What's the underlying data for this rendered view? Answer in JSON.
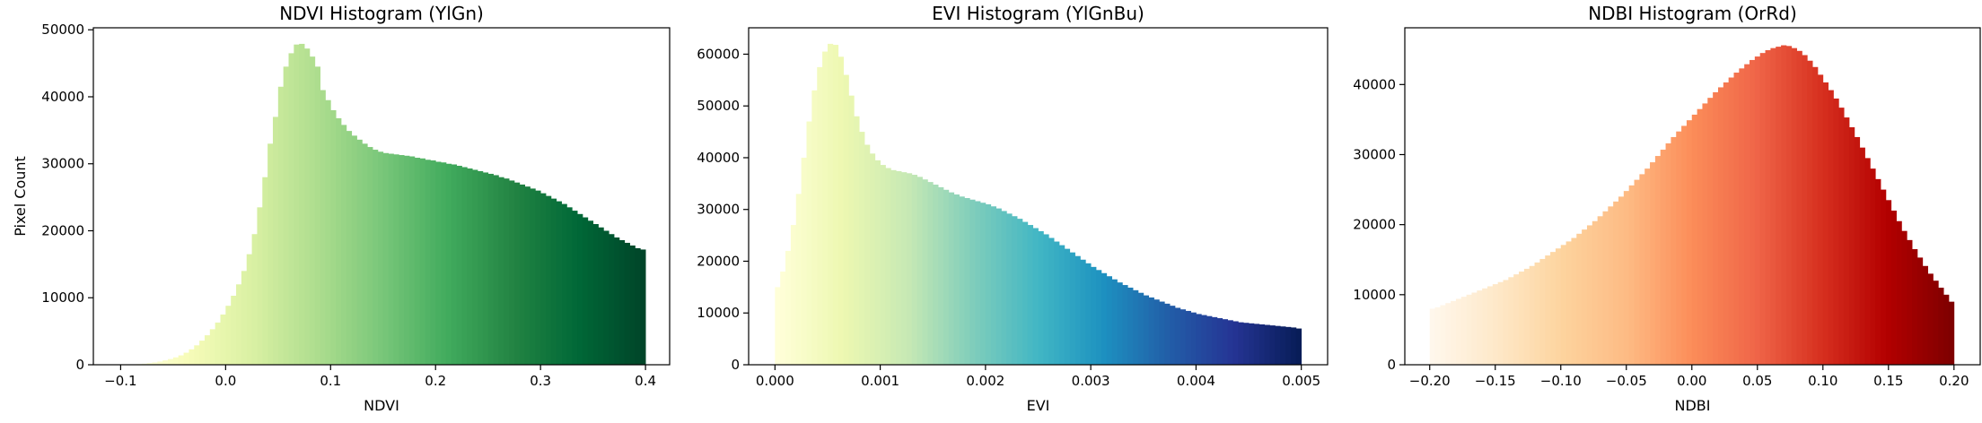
{
  "chart_data": [
    {
      "type": "histogram",
      "title": "NDVI Histogram (YlGn)",
      "x_label": "NDVI",
      "y_label": "Pixel Count",
      "colormap": [
        "#ffffe5",
        "#f7fcb9",
        "#d9f0a3",
        "#addd8e",
        "#78c679",
        "#41ab5d",
        "#238443",
        "#006837",
        "#004529"
      ],
      "bins": [
        -0.1,
        -0.095,
        -0.09,
        -0.085,
        -0.08,
        -0.075,
        -0.07,
        -0.065,
        -0.06,
        -0.055,
        -0.05,
        -0.045,
        -0.04,
        -0.035,
        -0.03,
        -0.025,
        -0.02,
        -0.015,
        -0.01,
        -0.005,
        0,
        0.005,
        0.01,
        0.015,
        0.02,
        0.025,
        0.03,
        0.035,
        0.04,
        0.045,
        0.05,
        0.055,
        0.06,
        0.065,
        0.07,
        0.075,
        0.08,
        0.085,
        0.09,
        0.095,
        0.1,
        0.105,
        0.11,
        0.115,
        0.12,
        0.125,
        0.13,
        0.135,
        0.14,
        0.145,
        0.15,
        0.155,
        0.16,
        0.165,
        0.17,
        0.175,
        0.18,
        0.185,
        0.19,
        0.195,
        0.2,
        0.205,
        0.21,
        0.215,
        0.22,
        0.225,
        0.23,
        0.235,
        0.24,
        0.245,
        0.25,
        0.255,
        0.26,
        0.265,
        0.27,
        0.275,
        0.28,
        0.285,
        0.29,
        0.295,
        0.3,
        0.305,
        0.31,
        0.315,
        0.32,
        0.325,
        0.33,
        0.335,
        0.34,
        0.345,
        0.35,
        0.355,
        0.36,
        0.365,
        0.37,
        0.375,
        0.38,
        0.385,
        0.39,
        0.395,
        0.4
      ],
      "values": [
        0,
        20,
        50,
        100,
        160,
        250,
        350,
        480,
        650,
        850,
        1100,
        1400,
        1800,
        2300,
        2900,
        3600,
        4400,
        5300,
        6300,
        7500,
        8800,
        10300,
        12000,
        14000,
        16500,
        19500,
        23500,
        28000,
        33000,
        37000,
        41500,
        44500,
        46500,
        47800,
        47900,
        47200,
        46000,
        44500,
        41000,
        39500,
        38000,
        36800,
        35800,
        34900,
        34200,
        33600,
        33000,
        32500,
        32100,
        31800,
        31600,
        31500,
        31400,
        31300,
        31200,
        31100,
        30900,
        30800,
        30600,
        30500,
        30300,
        30200,
        30000,
        29900,
        29700,
        29500,
        29300,
        29100,
        28900,
        28700,
        28500,
        28300,
        28000,
        27800,
        27500,
        27200,
        26900,
        26600,
        26300,
        26000,
        25600,
        25200,
        24800,
        24400,
        24000,
        23500,
        23000,
        22500,
        22000,
        21500,
        21000,
        20500,
        20000,
        19500,
        19000,
        18600,
        18200,
        17800,
        17400,
        17200
      ],
      "xlim": [
        -0.126,
        0.423
      ],
      "ylim": [
        0,
        50300
      ],
      "xticks": [
        {
          "value": -0.1,
          "label": "−0.1"
        },
        {
          "value": 0,
          "label": "0.0"
        },
        0.1,
        0.2,
        0.3,
        0.4
      ],
      "yticks": [
        0,
        10000,
        20000,
        30000,
        40000,
        50000
      ]
    },
    {
      "type": "histogram",
      "title": "EVI Histogram (YlGnBu)",
      "x_label": "EVI",
      "colormap": [
        "#ffffd9",
        "#edf8b1",
        "#c7e9b4",
        "#7fcdbb",
        "#41b6c4",
        "#1d91c0",
        "#225ea8",
        "#253494",
        "#081d58"
      ],
      "bins": [
        0,
        5e-05,
        0.0001,
        0.00015,
        0.0002,
        0.00025,
        0.0003,
        0.00035,
        0.0004,
        0.00045,
        0.0005,
        0.00055,
        0.0006,
        0.00065,
        0.0007,
        0.00075,
        0.0008,
        0.00085,
        0.0009,
        0.00095,
        0.001,
        0.00105,
        0.0011,
        0.00115,
        0.0012,
        0.00125,
        0.0013,
        0.00135,
        0.0014,
        0.00145,
        0.0015,
        0.00155,
        0.0016,
        0.00165,
        0.0017,
        0.00175,
        0.0018,
        0.00185,
        0.0019,
        0.00195,
        0.002,
        0.00205,
        0.0021,
        0.00215,
        0.0022,
        0.00225,
        0.0023,
        0.00235,
        0.0024,
        0.00245,
        0.0025,
        0.00255,
        0.0026,
        0.00265,
        0.0027,
        0.00275,
        0.0028,
        0.00285,
        0.0029,
        0.00295,
        0.003,
        0.00305,
        0.0031,
        0.00315,
        0.0032,
        0.00325,
        0.0033,
        0.00335,
        0.0034,
        0.00345,
        0.0035,
        0.00355,
        0.0036,
        0.00365,
        0.0037,
        0.00375,
        0.0038,
        0.00385,
        0.0039,
        0.00395,
        0.004,
        0.00405,
        0.0041,
        0.00415,
        0.0042,
        0.00425,
        0.0043,
        0.00435,
        0.0044,
        0.00445,
        0.0045,
        0.00455,
        0.0046,
        0.00465,
        0.0047,
        0.00475,
        0.0048,
        0.00485,
        0.0049,
        0.00495,
        0.005
      ],
      "values": [
        15000,
        18000,
        22000,
        27000,
        33000,
        40000,
        47000,
        53000,
        57500,
        60500,
        62000,
        61800,
        59500,
        56000,
        52000,
        48000,
        45000,
        42500,
        40800,
        39500,
        38600,
        38000,
        37600,
        37400,
        37200,
        37000,
        36700,
        36300,
        35800,
        35300,
        34800,
        34300,
        33800,
        33300,
        32900,
        32500,
        32200,
        31900,
        31600,
        31300,
        31000,
        30600,
        30200,
        29700,
        29200,
        28700,
        28200,
        27600,
        27000,
        26400,
        25800,
        25200,
        24500,
        23800,
        23100,
        22400,
        21700,
        21000,
        20300,
        19600,
        18900,
        18300,
        17700,
        17100,
        16500,
        15900,
        15400,
        14900,
        14400,
        13900,
        13400,
        13000,
        12600,
        12200,
        11800,
        11400,
        11000,
        10700,
        10400,
        10100,
        9800,
        9600,
        9400,
        9200,
        9000,
        8800,
        8600,
        8400,
        8200,
        8100,
        8000,
        7900,
        7800,
        7700,
        7600,
        7500,
        7400,
        7300,
        7200,
        7000
      ],
      "xlim": [
        -0.00025,
        0.00525
      ],
      "ylim": [
        0,
        65100
      ],
      "xticks": [
        {
          "value": 0,
          "label": "0.000"
        },
        {
          "value": 0.001,
          "label": "0.001"
        },
        {
          "value": 0.002,
          "label": "0.002"
        },
        {
          "value": 0.003,
          "label": "0.003"
        },
        {
          "value": 0.004,
          "label": "0.004"
        },
        {
          "value": 0.005,
          "label": "0.005"
        }
      ],
      "yticks": [
        0,
        10000,
        20000,
        30000,
        40000,
        50000,
        60000
      ]
    },
    {
      "type": "histogram",
      "title": "NDBI Histogram (OrRd)",
      "x_label": "NDBI",
      "colormap": [
        "#fff7ec",
        "#fee8c8",
        "#fdd49e",
        "#fdbb84",
        "#fc8d59",
        "#ef6548",
        "#d7301f",
        "#b30000",
        "#7f0000"
      ],
      "bins": [
        -0.2,
        -0.196,
        -0.192,
        -0.188,
        -0.184,
        -0.18,
        -0.176,
        -0.172,
        -0.168,
        -0.164,
        -0.16,
        -0.156,
        -0.152,
        -0.148,
        -0.144,
        -0.14,
        -0.136,
        -0.132,
        -0.128,
        -0.124,
        -0.12,
        -0.116,
        -0.112,
        -0.108,
        -0.104,
        -0.1,
        -0.096,
        -0.092,
        -0.088,
        -0.084,
        -0.08,
        -0.076,
        -0.072,
        -0.068,
        -0.064,
        -0.06,
        -0.056,
        -0.052,
        -0.048,
        -0.044,
        -0.04,
        -0.036,
        -0.032,
        -0.028,
        -0.024,
        -0.02,
        -0.016,
        -0.012,
        -0.008,
        -0.004,
        0,
        0.004,
        0.008,
        0.012,
        0.016,
        0.02,
        0.024,
        0.028,
        0.032,
        0.036,
        0.04,
        0.044,
        0.048,
        0.052,
        0.056,
        0.06,
        0.064,
        0.068,
        0.072,
        0.076,
        0.08,
        0.084,
        0.088,
        0.092,
        0.096,
        0.1,
        0.104,
        0.108,
        0.112,
        0.116,
        0.12,
        0.124,
        0.128,
        0.132,
        0.136,
        0.14,
        0.144,
        0.148,
        0.152,
        0.156,
        0.16,
        0.164,
        0.168,
        0.172,
        0.176,
        0.18,
        0.184,
        0.188,
        0.192,
        0.196,
        0.2
      ],
      "values": [
        8000,
        8200,
        8500,
        8800,
        9100,
        9400,
        9700,
        10000,
        10300,
        10600,
        10900,
        11200,
        11500,
        11800,
        12100,
        12500,
        12900,
        13300,
        13700,
        14100,
        14600,
        15100,
        15600,
        16100,
        16600,
        17100,
        17600,
        18100,
        18700,
        19300,
        19900,
        20500,
        21200,
        21900,
        22600,
        23300,
        24000,
        24800,
        25600,
        26400,
        27200,
        28000,
        28900,
        29800,
        30700,
        31600,
        32500,
        33300,
        34100,
        34900,
        35700,
        36500,
        37300,
        38100,
        38900,
        39600,
        40300,
        41000,
        41700,
        42300,
        42900,
        43500,
        44000,
        44500,
        44900,
        45200,
        45400,
        45600,
        45500,
        45200,
        44800,
        44200,
        43400,
        42500,
        41400,
        40300,
        39200,
        38000,
        36700,
        35300,
        33900,
        32500,
        31000,
        29500,
        28000,
        26500,
        25000,
        23500,
        22000,
        20500,
        19100,
        17800,
        16500,
        15300,
        14100,
        13000,
        12000,
        11000,
        10000,
        9000
      ],
      "xlim": [
        -0.219,
        0.22
      ],
      "ylim": [
        0,
        48100
      ],
      "xticks": [
        {
          "value": -0.2,
          "label": "−0.20"
        },
        {
          "value": -0.15,
          "label": "−0.15"
        },
        {
          "value": -0.1,
          "label": "−0.10"
        },
        {
          "value": -0.05,
          "label": "−0.05"
        },
        {
          "value": 0,
          "label": "0.00"
        },
        {
          "value": 0.05,
          "label": "0.05"
        },
        {
          "value": 0.1,
          "label": "0.10"
        },
        {
          "value": 0.15,
          "label": "0.15"
        },
        {
          "value": 0.2,
          "label": "0.20"
        }
      ],
      "yticks": [
        0,
        10000,
        20000,
        30000,
        40000
      ]
    }
  ]
}
